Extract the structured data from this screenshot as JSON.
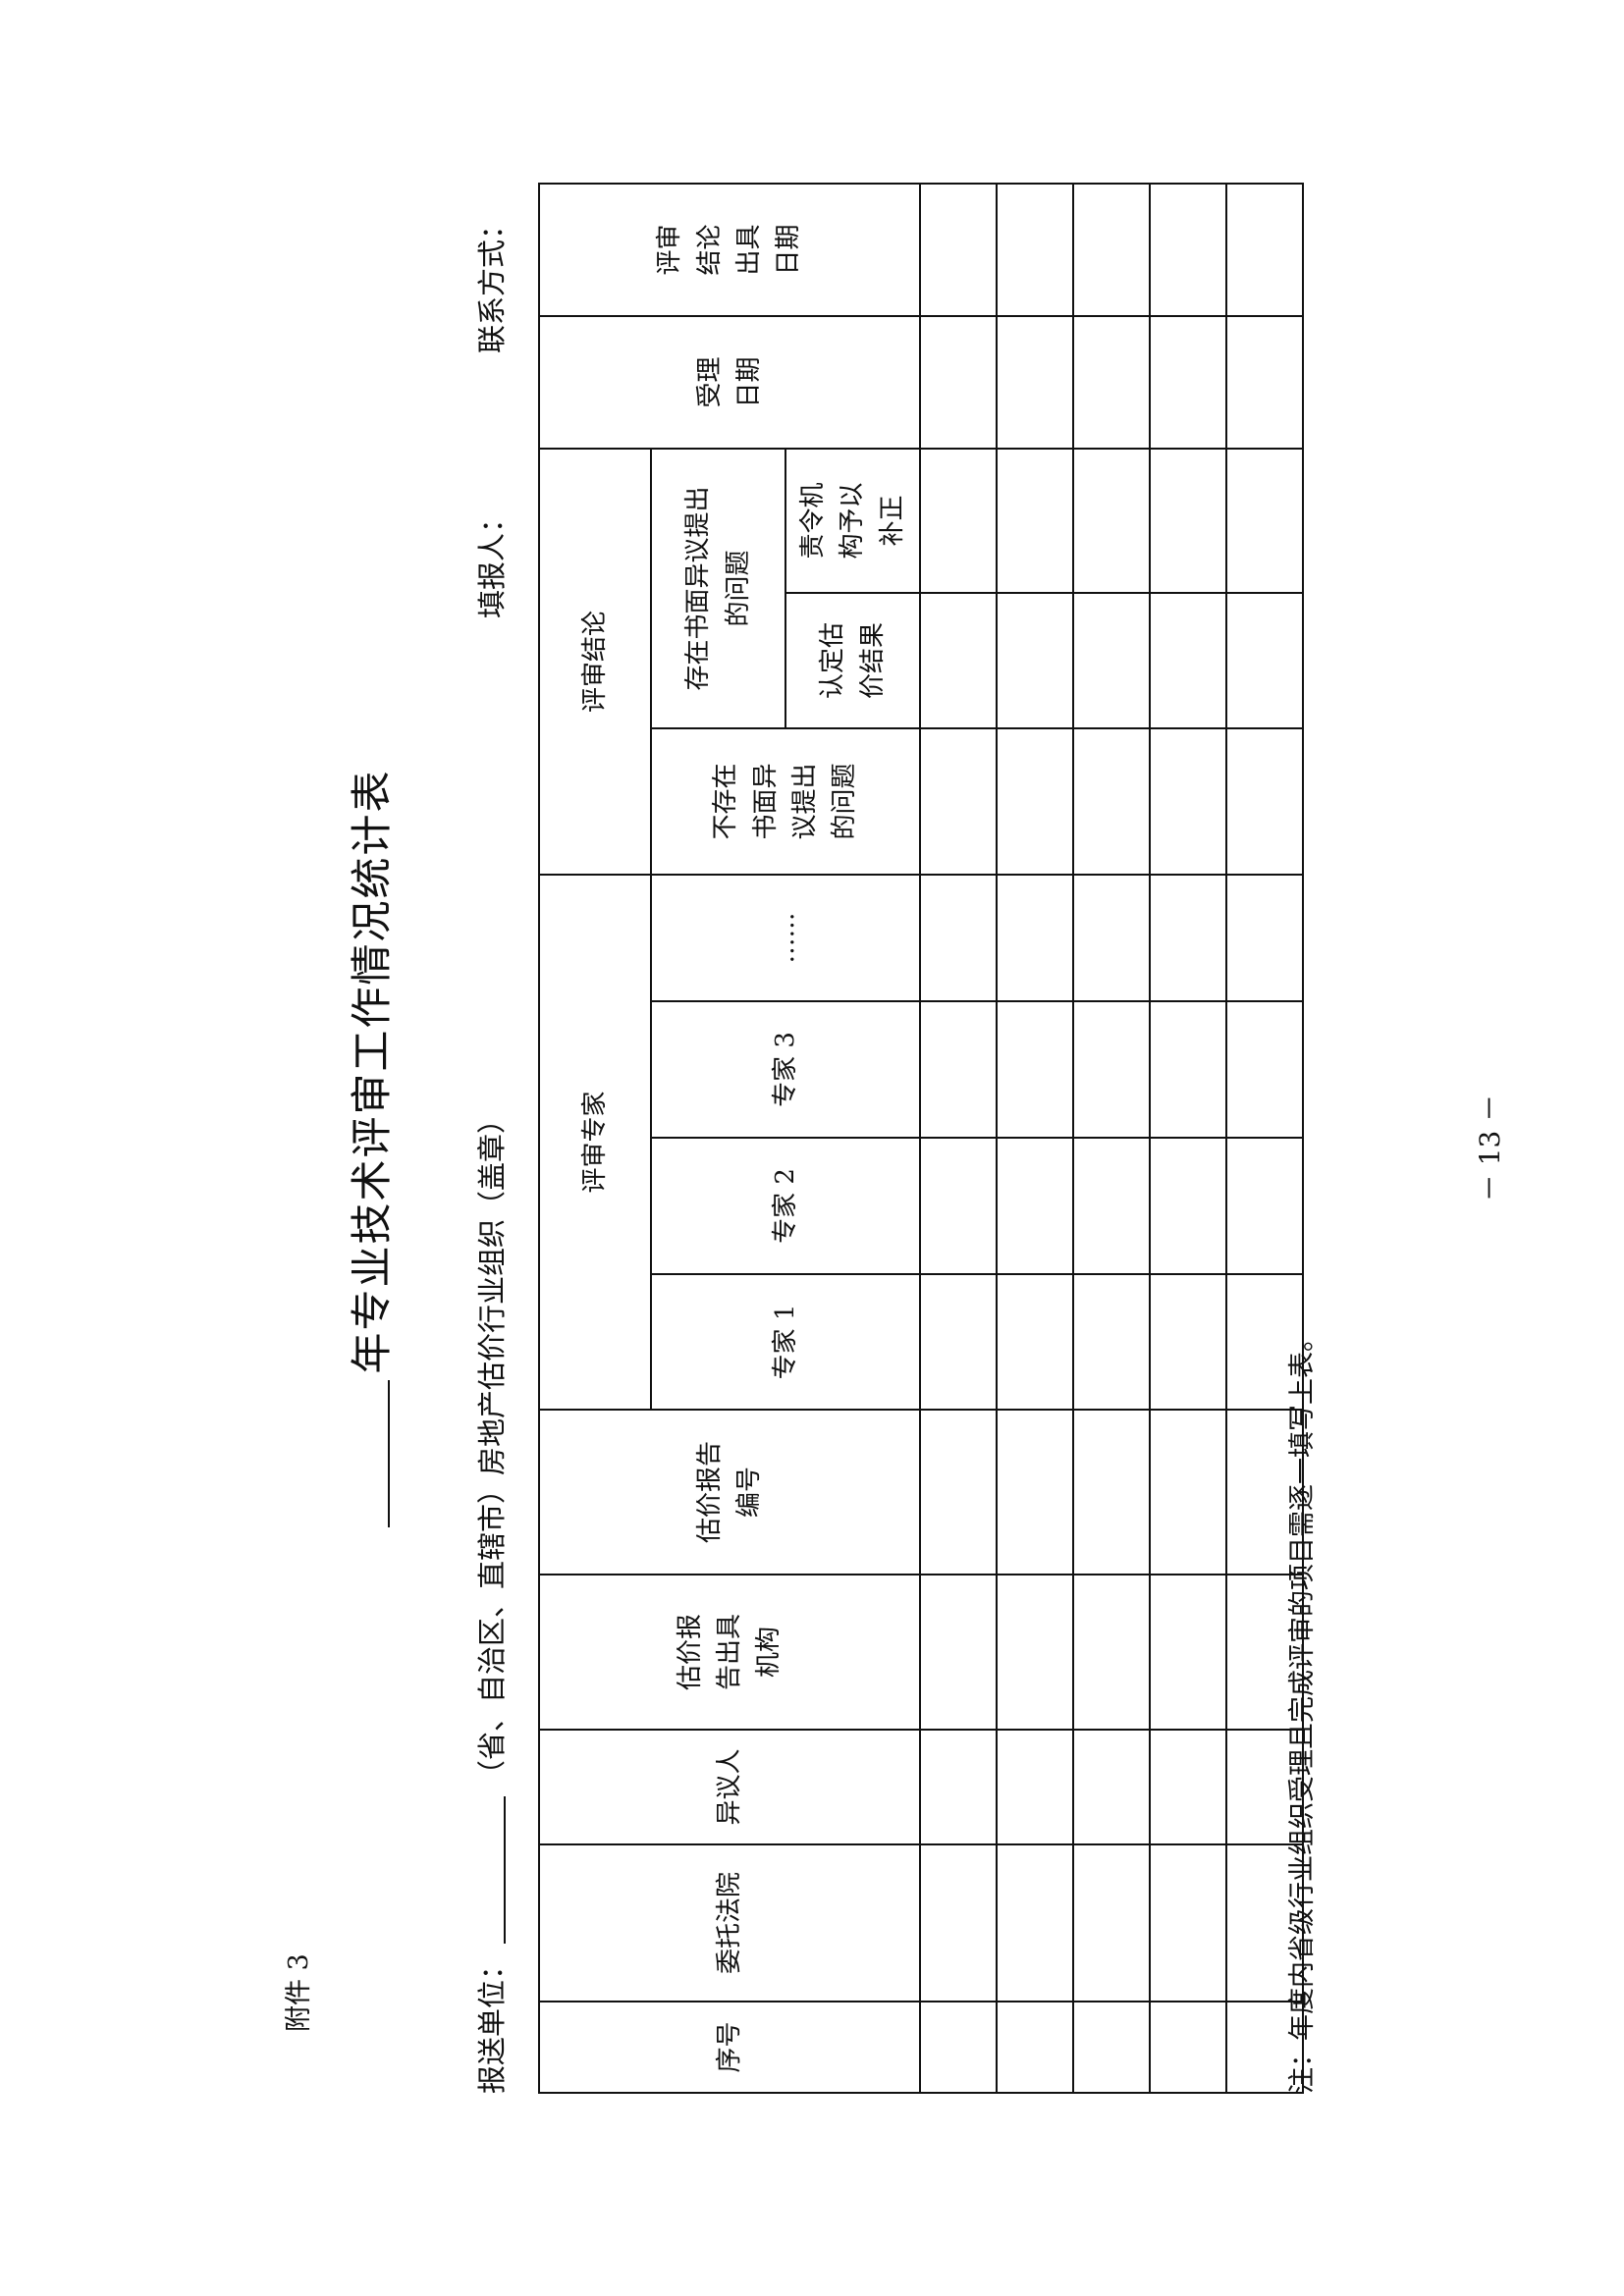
{
  "attachment": "附件 3",
  "title": "年专业技术评审工作情况统计表",
  "header_line": {
    "sender_label": "报送单位：",
    "sender_suffix": "（省、自治区、直辖市）房地产估价行业组织（盖章）",
    "filler_label": "填报人：",
    "contact_label": "联系方式："
  },
  "table": {
    "columns": {
      "seq": "序号",
      "court": "委托法院",
      "objector": "异议人",
      "agency": "估价报告出具机构",
      "report_no": "估价报告编号",
      "experts_group": "评审专家",
      "expert1": "专家 1",
      "expert2": "专家 2",
      "expert3": "专家 3",
      "expert_more": "……",
      "conclusion_group": "评审结论",
      "no_issue": "不存在书面异议提出的问题",
      "has_issue": "存在书面异议提出的问题",
      "confirm": "认定估价结果",
      "correct": "责令机构予以补正",
      "accept_date": "受理日期",
      "conclusion_date": "评审结论出具日期"
    },
    "row_count": 5
  },
  "note": "注：年度内省级行业组织受理且完成评审的项目需逐一填写上表。",
  "page_number": "－ 13 －"
}
